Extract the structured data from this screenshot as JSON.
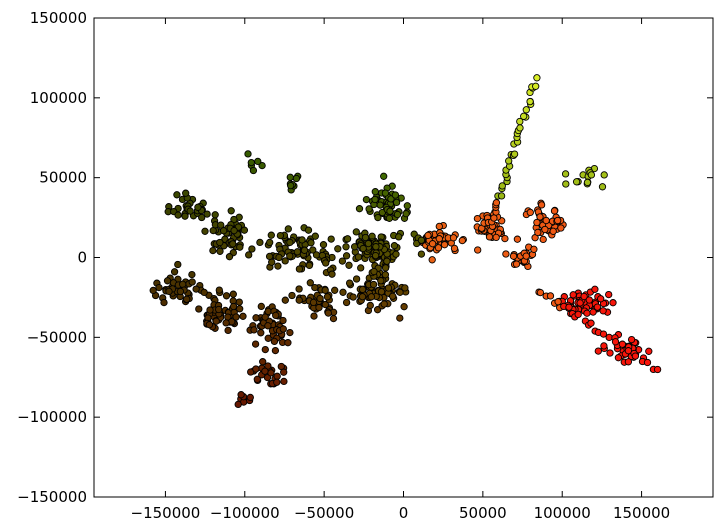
{
  "chart_data": {
    "type": "scatter",
    "title": "",
    "xlabel": "",
    "ylabel": "",
    "xlim": [
      -195000,
      195000
    ],
    "ylim": [
      -150000,
      150000
    ],
    "xticks": [
      -150000,
      -100000,
      -50000,
      0,
      50000,
      100000,
      150000
    ],
    "yticks": [
      -150000,
      -100000,
      -50000,
      0,
      50000,
      100000,
      150000
    ],
    "xtick_labels": [
      "−150000",
      "−100000",
      "−50000",
      "0",
      "50000",
      "100000",
      "150000"
    ],
    "ytick_labels": [
      "−150000",
      "−100000",
      "−50000",
      "0",
      "50000",
      "100000",
      "150000"
    ],
    "grid": false,
    "legend": "none",
    "colormap": "hue gradient: dark red (negative x, negative y) through dark green / olive to yellow-green and orange to red (positive x)",
    "marker_edge_color": "#000000",
    "points_shown_approx": 900,
    "clusters": [
      {
        "center": [
          -135000,
          30000
        ],
        "spread": [
          14000,
          9000
        ],
        "n": 30
      },
      {
        "center": [
          -110000,
          15000
        ],
        "spread": [
          15000,
          12000
        ],
        "n": 60
      },
      {
        "center": [
          -140000,
          -20000
        ],
        "spread": [
          18000,
          12000
        ],
        "n": 45
      },
      {
        "center": [
          -115000,
          -35000
        ],
        "spread": [
          16000,
          12000
        ],
        "n": 50
      },
      {
        "center": [
          -85000,
          -45000
        ],
        "spread": [
          14000,
          16000
        ],
        "n": 50
      },
      {
        "center": [
          -85000,
          -72000
        ],
        "spread": [
          15000,
          8000
        ],
        "n": 25
      },
      {
        "center": [
          -100000,
          -88000
        ],
        "spread": [
          7000,
          5000
        ],
        "n": 8
      },
      {
        "center": [
          -95000,
          60000
        ],
        "spread": [
          6000,
          7000
        ],
        "n": 6
      },
      {
        "center": [
          -70000,
          47000
        ],
        "spread": [
          5000,
          8000
        ],
        "n": 8
      },
      {
        "center": [
          -65000,
          5000
        ],
        "spread": [
          22000,
          12000
        ],
        "n": 80
      },
      {
        "center": [
          -55000,
          -25000
        ],
        "spread": [
          15000,
          12000
        ],
        "n": 40
      },
      {
        "center": [
          -20000,
          5000
        ],
        "spread": [
          20000,
          10000
        ],
        "n": 90
      },
      {
        "center": [
          -15000,
          -20000
        ],
        "spread": [
          18000,
          12000
        ],
        "n": 80
      },
      {
        "center": [
          -10000,
          32000
        ],
        "spread": [
          14000,
          14000
        ],
        "n": 60
      },
      {
        "center": [
          20000,
          10000
        ],
        "spread": [
          18000,
          8000
        ],
        "n": 60
      },
      {
        "center": [
          55000,
          20000
        ],
        "spread": [
          8000,
          12000
        ],
        "n": 40
      },
      {
        "center": [
          90000,
          22000
        ],
        "spread": [
          12000,
          12000
        ],
        "n": 45
      },
      {
        "center": [
          115000,
          50000
        ],
        "spread": [
          12000,
          8000
        ],
        "n": 15
      },
      {
        "center": [
          75000,
          0
        ],
        "spread": [
          12000,
          8000
        ],
        "n": 25
      },
      {
        "center": [
          110000,
          -28000
        ],
        "spread": [
          12000,
          8000
        ],
        "n": 40
      },
      {
        "center": [
          140000,
          -58000
        ],
        "spread": [
          14000,
          8000
        ],
        "n": 35
      },
      {
        "center": [
          125000,
          -30000
        ],
        "spread": [
          8000,
          8000
        ],
        "n": 15
      }
    ],
    "arm_top": {
      "from": [
        55000,
        20000
      ],
      "to": [
        84000,
        112000
      ],
      "n": 38
    },
    "arm_right": {
      "from": [
        85000,
        -20000
      ],
      "to": [
        160000,
        -70000
      ],
      "n": 30
    }
  }
}
